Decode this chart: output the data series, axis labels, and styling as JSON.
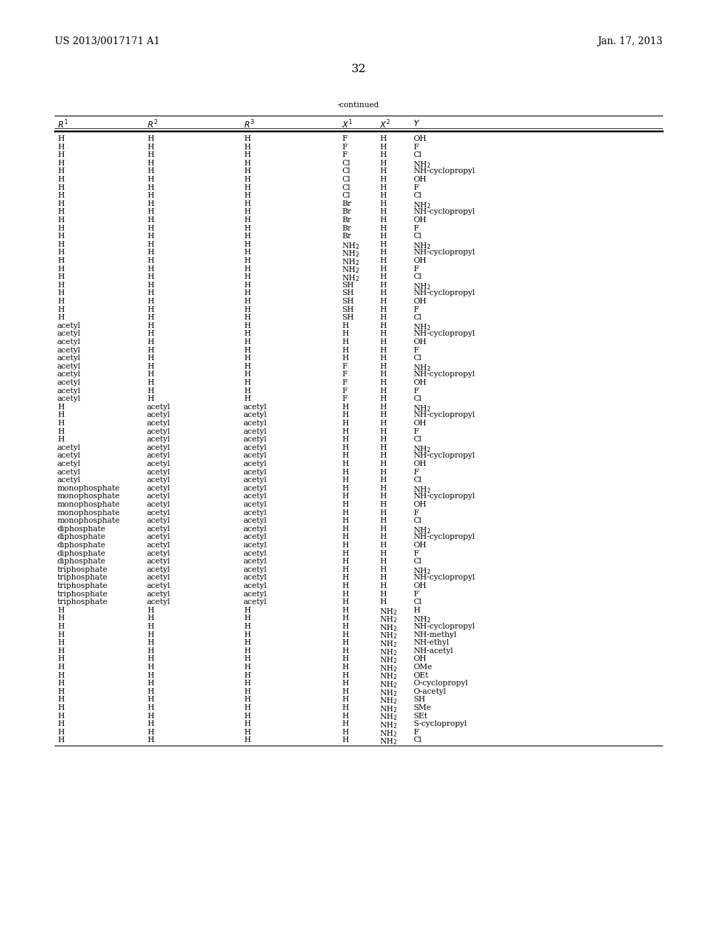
{
  "header_left": "US 2013/0017171 A1",
  "header_right": "Jan. 17, 2013",
  "page_number": "32",
  "table_title": "-continued",
  "rows": [
    [
      "H",
      "H",
      "H",
      "F",
      "H",
      "OH"
    ],
    [
      "H",
      "H",
      "H",
      "F",
      "H",
      "F"
    ],
    [
      "H",
      "H",
      "H",
      "F",
      "H",
      "Cl"
    ],
    [
      "H",
      "H",
      "H",
      "Cl",
      "H",
      "NH$_2$"
    ],
    [
      "H",
      "H",
      "H",
      "Cl",
      "H",
      "NH-cyclopropyl"
    ],
    [
      "H",
      "H",
      "H",
      "Cl",
      "H",
      "OH"
    ],
    [
      "H",
      "H",
      "H",
      "Cl",
      "H",
      "F"
    ],
    [
      "H",
      "H",
      "H",
      "Cl",
      "H",
      "Cl"
    ],
    [
      "H",
      "H",
      "H",
      "Br",
      "H",
      "NH$_2$"
    ],
    [
      "H",
      "H",
      "H",
      "Br",
      "H",
      "NH-cyclopropyl"
    ],
    [
      "H",
      "H",
      "H",
      "Br",
      "H",
      "OH"
    ],
    [
      "H",
      "H",
      "H",
      "Br",
      "H",
      "F"
    ],
    [
      "H",
      "H",
      "H",
      "Br",
      "H",
      "Cl"
    ],
    [
      "H",
      "H",
      "H",
      "NH$_2$",
      "H",
      "NH$_2$"
    ],
    [
      "H",
      "H",
      "H",
      "NH$_2$",
      "H",
      "NH-cyclopropyl"
    ],
    [
      "H",
      "H",
      "H",
      "NH$_2$",
      "H",
      "OH"
    ],
    [
      "H",
      "H",
      "H",
      "NH$_2$",
      "H",
      "F"
    ],
    [
      "H",
      "H",
      "H",
      "NH$_2$",
      "H",
      "Cl"
    ],
    [
      "H",
      "H",
      "H",
      "SH",
      "H",
      "NH$_2$"
    ],
    [
      "H",
      "H",
      "H",
      "SH",
      "H",
      "NH-cyclopropyl"
    ],
    [
      "H",
      "H",
      "H",
      "SH",
      "H",
      "OH"
    ],
    [
      "H",
      "H",
      "H",
      "SH",
      "H",
      "F"
    ],
    [
      "H",
      "H",
      "H",
      "SH",
      "H",
      "Cl"
    ],
    [
      "acetyl",
      "H",
      "H",
      "H",
      "H",
      "NH$_2$"
    ],
    [
      "acetyl",
      "H",
      "H",
      "H",
      "H",
      "NH-cyclopropyl"
    ],
    [
      "acetyl",
      "H",
      "H",
      "H",
      "H",
      "OH"
    ],
    [
      "acetyl",
      "H",
      "H",
      "H",
      "H",
      "F"
    ],
    [
      "acetyl",
      "H",
      "H",
      "H",
      "H",
      "Cl"
    ],
    [
      "acetyl",
      "H",
      "H",
      "F",
      "H",
      "NH$_2$"
    ],
    [
      "acetyl",
      "H",
      "H",
      "F",
      "H",
      "NH-cyclopropyl"
    ],
    [
      "acetyl",
      "H",
      "H",
      "F",
      "H",
      "OH"
    ],
    [
      "acetyl",
      "H",
      "H",
      "F",
      "H",
      "F"
    ],
    [
      "acetyl",
      "H",
      "H",
      "F",
      "H",
      "Cl"
    ],
    [
      "H",
      "acetyl",
      "acetyl",
      "H",
      "H",
      "NH$_2$"
    ],
    [
      "H",
      "acetyl",
      "acetyl",
      "H",
      "H",
      "NH-cyclopropyl"
    ],
    [
      "H",
      "acetyl",
      "acetyl",
      "H",
      "H",
      "OH"
    ],
    [
      "H",
      "acetyl",
      "acetyl",
      "H",
      "H",
      "F"
    ],
    [
      "H",
      "acetyl",
      "acetyl",
      "H",
      "H",
      "Cl"
    ],
    [
      "acetyl",
      "acetyl",
      "acetyl",
      "H",
      "H",
      "NH$_2$"
    ],
    [
      "acetyl",
      "acetyl",
      "acetyl",
      "H",
      "H",
      "NH-cyclopropyl"
    ],
    [
      "acetyl",
      "acetyl",
      "acetyl",
      "H",
      "H",
      "OH"
    ],
    [
      "acetyl",
      "acetyl",
      "acetyl",
      "H",
      "H",
      "F"
    ],
    [
      "acetyl",
      "acetyl",
      "acetyl",
      "H",
      "H",
      "Cl"
    ],
    [
      "monophosphate",
      "acetyl",
      "acetyl",
      "H",
      "H",
      "NH$_2$"
    ],
    [
      "monophosphate",
      "acetyl",
      "acetyl",
      "H",
      "H",
      "NH-cyclopropyl"
    ],
    [
      "monophosphate",
      "acetyl",
      "acetyl",
      "H",
      "H",
      "OH"
    ],
    [
      "monophosphate",
      "acetyl",
      "acetyl",
      "H",
      "H",
      "F"
    ],
    [
      "monophosphate",
      "acetyl",
      "acetyl",
      "H",
      "H",
      "Cl"
    ],
    [
      "diphosphate",
      "acetyl",
      "acetyl",
      "H",
      "H",
      "NH$_2$"
    ],
    [
      "diphosphate",
      "acetyl",
      "acetyl",
      "H",
      "H",
      "NH-cyclopropyl"
    ],
    [
      "diphosphate",
      "acetyl",
      "acetyl",
      "H",
      "H",
      "OH"
    ],
    [
      "diphosphate",
      "acetyl",
      "acetyl",
      "H",
      "H",
      "F"
    ],
    [
      "diphosphate",
      "acetyl",
      "acetyl",
      "H",
      "H",
      "Cl"
    ],
    [
      "triphosphate",
      "acetyl",
      "acetyl",
      "H",
      "H",
      "NH$_2$"
    ],
    [
      "triphosphate",
      "acetyl",
      "acetyl",
      "H",
      "H",
      "NH-cyclopropyl"
    ],
    [
      "triphosphate",
      "acetyl",
      "acetyl",
      "H",
      "H",
      "OH"
    ],
    [
      "triphosphate",
      "acetyl",
      "acetyl",
      "H",
      "H",
      "F"
    ],
    [
      "triphosphate",
      "acetyl",
      "acetyl",
      "H",
      "H",
      "Cl"
    ],
    [
      "H",
      "H",
      "H",
      "H",
      "NH$_2$",
      "H"
    ],
    [
      "H",
      "H",
      "H",
      "H",
      "NH$_2$",
      "NH$_2$"
    ],
    [
      "H",
      "H",
      "H",
      "H",
      "NH$_2$",
      "NH-cyclopropyl"
    ],
    [
      "H",
      "H",
      "H",
      "H",
      "NH$_2$",
      "NH-methyl"
    ],
    [
      "H",
      "H",
      "H",
      "H",
      "NH$_2$",
      "NH-ethyl"
    ],
    [
      "H",
      "H",
      "H",
      "H",
      "NH$_2$",
      "NH-acetyl"
    ],
    [
      "H",
      "H",
      "H",
      "H",
      "NH$_2$",
      "OH"
    ],
    [
      "H",
      "H",
      "H",
      "H",
      "NH$_2$",
      "OMe"
    ],
    [
      "H",
      "H",
      "H",
      "H",
      "NH$_2$",
      "OEt"
    ],
    [
      "H",
      "H",
      "H",
      "H",
      "NH$_2$",
      "O-cyclopropyl"
    ],
    [
      "H",
      "H",
      "H",
      "H",
      "NH$_2$",
      "O-acetyl"
    ],
    [
      "H",
      "H",
      "H",
      "H",
      "NH$_2$",
      "SH"
    ],
    [
      "H",
      "H",
      "H",
      "H",
      "NH$_2$",
      "SMe"
    ],
    [
      "H",
      "H",
      "H",
      "H",
      "NH$_2$",
      "SEt"
    ],
    [
      "H",
      "H",
      "H",
      "H",
      "NH$_2$",
      "S-cyclopropyl"
    ],
    [
      "H",
      "H",
      "H",
      "H",
      "NH$_2$",
      "F"
    ],
    [
      "H",
      "H",
      "H",
      "H",
      "NH$_2$",
      "Cl"
    ]
  ],
  "bg_color": "#ffffff",
  "text_color": "#000000",
  "font_size": 8.0,
  "header_font_size": 10.0,
  "page_num_font_size": 12.0
}
